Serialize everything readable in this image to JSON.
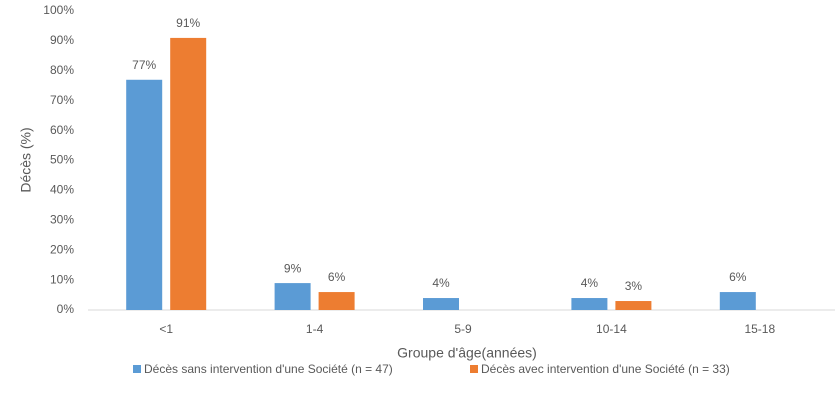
{
  "chart_data": {
    "type": "bar",
    "categories": [
      "<1",
      "1-4",
      "5-9",
      "10-14",
      "15-18"
    ],
    "series": [
      {
        "name": "Décès sans intervention d'une Société (n = 47)",
        "color": "#5b9bd5",
        "values": [
          77,
          9,
          4,
          4,
          6
        ],
        "value_labels": [
          "77%",
          "9%",
          "4%",
          "4%",
          "6%"
        ]
      },
      {
        "name": "Décès avec intervention d'une Société (n = 33)",
        "color": "#ed7d31",
        "values": [
          91,
          6,
          null,
          3,
          null
        ],
        "value_labels": [
          "91%",
          "6%",
          null,
          "3%",
          null
        ]
      }
    ],
    "ylim": [
      0,
      100
    ],
    "yticks": [
      {
        "value": 0,
        "label": "0%"
      },
      {
        "value": 10,
        "label": "10%"
      },
      {
        "value": 20,
        "label": "20%"
      },
      {
        "value": 30,
        "label": "30%"
      },
      {
        "value": 40,
        "label": "40%"
      },
      {
        "value": 50,
        "label": "50%"
      },
      {
        "value": 60,
        "label": "60%"
      },
      {
        "value": 70,
        "label": "70%"
      },
      {
        "value": 80,
        "label": "80%"
      },
      {
        "value": 90,
        "label": "90%"
      },
      {
        "value": 100,
        "label": "100%"
      }
    ],
    "y_label": "Décès (%)",
    "x_label": "Groupe d'âge(années)",
    "grid": false,
    "legend": "bottom"
  }
}
